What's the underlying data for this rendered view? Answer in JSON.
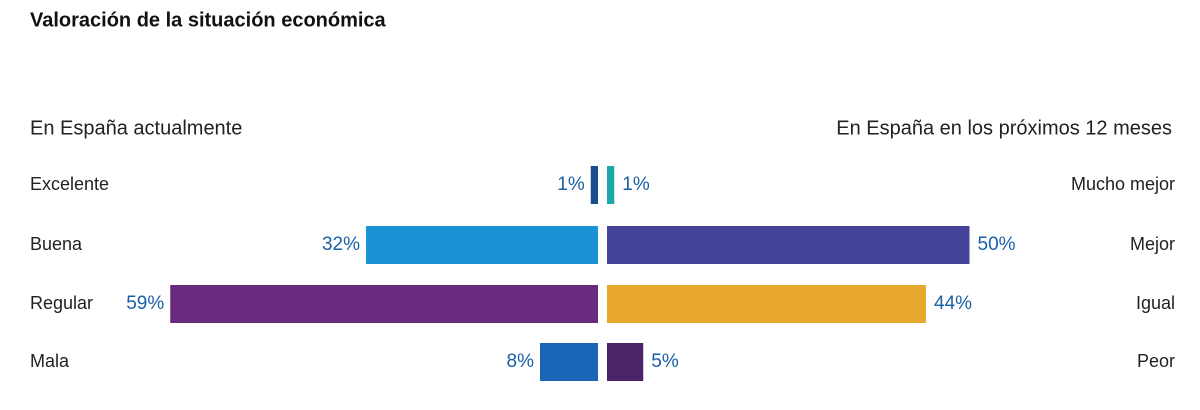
{
  "title": "Valoración de la situación económica",
  "chart_data": [
    {
      "type": "bar",
      "orientation": "horizontal",
      "direction": "left",
      "title": "En España actualmente",
      "categories": [
        "Excelente",
        "Buena",
        "Regular",
        "Mala"
      ],
      "values": [
        1,
        32,
        59,
        8
      ],
      "value_labels": [
        "1%",
        "32%",
        "59%",
        "8%"
      ],
      "colors": [
        "#1a4f8f",
        "#1a93d4",
        "#6a2a7d",
        "#1a65b5"
      ],
      "xlim": [
        0,
        60
      ]
    },
    {
      "type": "bar",
      "orientation": "horizontal",
      "direction": "right",
      "title": "En España en los próximos 12 meses",
      "categories": [
        "Mucho mejor",
        "Mejor",
        "Igual",
        "Peor"
      ],
      "values": [
        1,
        50,
        44,
        5
      ],
      "value_labels": [
        "1%",
        "50%",
        "44%",
        "5%"
      ],
      "colors": [
        "#1aa8a8",
        "#46449a",
        "#e8a830",
        "#4a2468"
      ],
      "xlim": [
        0,
        60
      ]
    }
  ]
}
